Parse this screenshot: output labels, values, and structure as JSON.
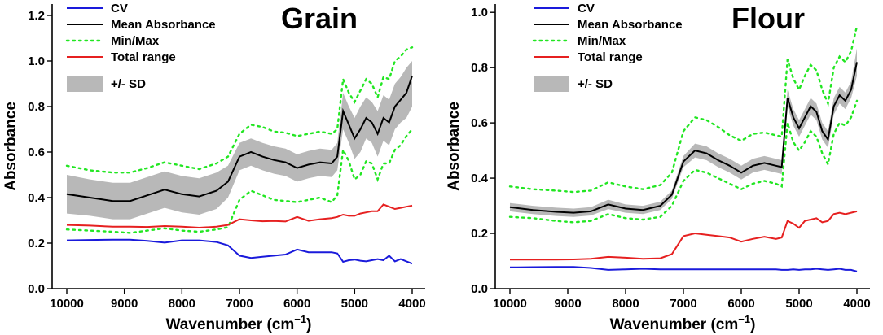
{
  "colors": {
    "cv": "#1a1adb",
    "mean": "#000000",
    "minmax": "#22e622",
    "range": "#e62020",
    "sd": "#b8b8b8"
  },
  "chart_data": [
    {
      "type": "line",
      "title": "Grain",
      "xlabel": "Wavenumber (cm",
      "xlabel_sup": "−1",
      "xlabel_close": ")",
      "ylabel": "Absorbance",
      "xlim": [
        10000,
        4000
      ],
      "ylim": [
        0,
        1.25
      ],
      "xticks": [
        10000,
        9000,
        8000,
        7000,
        6000,
        5000,
        4000
      ],
      "xtick_labels": [
        "10000",
        "9000",
        "8000",
        "7000",
        "6000",
        "5000",
        "4000"
      ],
      "yticks": [
        0.0,
        0.2,
        0.4,
        0.6,
        0.8,
        1.0,
        1.2
      ],
      "ytick_labels": [
        "0.0",
        "0.2",
        "0.4",
        "0.6",
        "0.8",
        "1.0",
        "1.2"
      ],
      "legend": [
        "CV",
        "Mean Absorbance",
        "Min/Max",
        "Total range",
        "+/- SD"
      ],
      "x": [
        10000,
        9600,
        9200,
        8900,
        8600,
        8300,
        8000,
        7700,
        7400,
        7200,
        7000,
        6800,
        6600,
        6400,
        6200,
        6000,
        5800,
        5600,
        5400,
        5300,
        5200,
        5100,
        5000,
        4900,
        4800,
        4700,
        4600,
        4500,
        4400,
        4300,
        4200,
        4100,
        4000
      ],
      "series": [
        {
          "name": "Mean Absorbance",
          "values": [
            0.415,
            0.4,
            0.385,
            0.385,
            0.41,
            0.435,
            0.415,
            0.405,
            0.43,
            0.47,
            0.58,
            0.6,
            0.58,
            0.565,
            0.555,
            0.53,
            0.545,
            0.555,
            0.55,
            0.58,
            0.78,
            0.72,
            0.66,
            0.7,
            0.75,
            0.73,
            0.68,
            0.75,
            0.73,
            0.8,
            0.83,
            0.86,
            0.935
          ]
        },
        {
          "name": "SD upper",
          "values": [
            0.5,
            0.48,
            0.465,
            0.465,
            0.49,
            0.515,
            0.495,
            0.485,
            0.51,
            0.54,
            0.64,
            0.66,
            0.64,
            0.625,
            0.615,
            0.59,
            0.605,
            0.615,
            0.61,
            0.64,
            0.86,
            0.8,
            0.75,
            0.8,
            0.84,
            0.82,
            0.78,
            0.85,
            0.83,
            0.9,
            0.93,
            0.97,
            1.0
          ]
        },
        {
          "name": "SD lower",
          "values": [
            0.33,
            0.32,
            0.305,
            0.305,
            0.33,
            0.355,
            0.335,
            0.325,
            0.35,
            0.4,
            0.52,
            0.54,
            0.52,
            0.505,
            0.495,
            0.47,
            0.485,
            0.495,
            0.49,
            0.52,
            0.7,
            0.64,
            0.57,
            0.6,
            0.66,
            0.64,
            0.58,
            0.65,
            0.63,
            0.7,
            0.73,
            0.75,
            0.8
          ]
        },
        {
          "name": "Max",
          "values": [
            0.54,
            0.52,
            0.51,
            0.51,
            0.53,
            0.555,
            0.54,
            0.525,
            0.55,
            0.58,
            0.68,
            0.72,
            0.71,
            0.69,
            0.685,
            0.67,
            0.68,
            0.69,
            0.68,
            0.7,
            0.92,
            0.86,
            0.82,
            0.87,
            0.92,
            0.9,
            0.84,
            0.93,
            0.92,
            1.0,
            1.02,
            1.05,
            1.06
          ]
        },
        {
          "name": "Min",
          "values": [
            0.26,
            0.255,
            0.25,
            0.245,
            0.255,
            0.265,
            0.255,
            0.25,
            0.26,
            0.27,
            0.39,
            0.43,
            0.41,
            0.39,
            0.385,
            0.38,
            0.39,
            0.4,
            0.38,
            0.41,
            0.61,
            0.56,
            0.48,
            0.5,
            0.56,
            0.55,
            0.48,
            0.55,
            0.55,
            0.61,
            0.63,
            0.67,
            0.7
          ]
        },
        {
          "name": "Total range",
          "values": [
            0.28,
            0.277,
            0.272,
            0.272,
            0.271,
            0.275,
            0.272,
            0.268,
            0.272,
            0.28,
            0.305,
            0.3,
            0.296,
            0.297,
            0.295,
            0.315,
            0.298,
            0.305,
            0.31,
            0.315,
            0.325,
            0.32,
            0.32,
            0.33,
            0.335,
            0.34,
            0.34,
            0.37,
            0.36,
            0.35,
            0.355,
            0.36,
            0.365
          ]
        },
        {
          "name": "CV",
          "values": [
            0.212,
            0.214,
            0.215,
            0.215,
            0.21,
            0.202,
            0.212,
            0.212,
            0.205,
            0.19,
            0.145,
            0.135,
            0.14,
            0.145,
            0.15,
            0.172,
            0.16,
            0.16,
            0.16,
            0.155,
            0.118,
            0.125,
            0.128,
            0.123,
            0.12,
            0.125,
            0.13,
            0.125,
            0.145,
            0.12,
            0.13,
            0.12,
            0.11
          ]
        }
      ]
    },
    {
      "type": "line",
      "title": "Flour",
      "xlabel": "Wavenumber (cm",
      "xlabel_sup": "−1",
      "xlabel_close": ")",
      "ylabel": "Absorbance",
      "xlim": [
        10000,
        4000
      ],
      "ylim": [
        0,
        1.03
      ],
      "xticks": [
        10000,
        9000,
        8000,
        7000,
        6000,
        5000,
        4000
      ],
      "xtick_labels": [
        "10000",
        "9000",
        "8000",
        "7000",
        "6000",
        "5000",
        "4000"
      ],
      "yticks": [
        0.0,
        0.2,
        0.4,
        0.6,
        0.8,
        1.0
      ],
      "ytick_labels": [
        "0.0",
        "0.2",
        "0.4",
        "0.6",
        "0.8",
        "1.0"
      ],
      "legend": [
        "CV",
        "Mean Absorbance",
        "Min/Max",
        "Total range",
        "+/- SD"
      ],
      "x": [
        10000,
        9600,
        9200,
        8900,
        8600,
        8300,
        8000,
        7700,
        7400,
        7200,
        7000,
        6800,
        6600,
        6400,
        6200,
        6000,
        5800,
        5600,
        5400,
        5300,
        5200,
        5100,
        5000,
        4900,
        4800,
        4700,
        4600,
        4500,
        4400,
        4300,
        4200,
        4100,
        4000
      ],
      "series": [
        {
          "name": "Mean Absorbance",
          "values": [
            0.295,
            0.285,
            0.278,
            0.275,
            0.28,
            0.305,
            0.29,
            0.285,
            0.3,
            0.34,
            0.46,
            0.5,
            0.49,
            0.465,
            0.445,
            0.42,
            0.445,
            0.455,
            0.445,
            0.44,
            0.69,
            0.62,
            0.58,
            0.62,
            0.66,
            0.64,
            0.57,
            0.54,
            0.66,
            0.7,
            0.68,
            0.72,
            0.82
          ]
        },
        {
          "name": "SD upper",
          "values": [
            0.31,
            0.3,
            0.293,
            0.29,
            0.295,
            0.322,
            0.305,
            0.3,
            0.315,
            0.355,
            0.48,
            0.525,
            0.515,
            0.49,
            0.47,
            0.445,
            0.47,
            0.48,
            0.47,
            0.465,
            0.72,
            0.65,
            0.61,
            0.65,
            0.69,
            0.67,
            0.6,
            0.57,
            0.69,
            0.73,
            0.71,
            0.75,
            0.87
          ]
        },
        {
          "name": "SD lower",
          "values": [
            0.28,
            0.27,
            0.263,
            0.26,
            0.265,
            0.288,
            0.275,
            0.27,
            0.285,
            0.325,
            0.44,
            0.475,
            0.465,
            0.44,
            0.42,
            0.395,
            0.42,
            0.43,
            0.42,
            0.415,
            0.66,
            0.59,
            0.55,
            0.59,
            0.63,
            0.61,
            0.54,
            0.51,
            0.63,
            0.67,
            0.65,
            0.69,
            0.77
          ]
        },
        {
          "name": "Max",
          "values": [
            0.37,
            0.36,
            0.355,
            0.35,
            0.355,
            0.385,
            0.37,
            0.36,
            0.375,
            0.42,
            0.57,
            0.62,
            0.61,
            0.585,
            0.555,
            0.535,
            0.56,
            0.565,
            0.555,
            0.55,
            0.83,
            0.76,
            0.72,
            0.77,
            0.81,
            0.79,
            0.72,
            0.67,
            0.8,
            0.84,
            0.82,
            0.86,
            0.95
          ]
        },
        {
          "name": "Min",
          "values": [
            0.26,
            0.255,
            0.245,
            0.24,
            0.245,
            0.27,
            0.255,
            0.25,
            0.26,
            0.3,
            0.39,
            0.43,
            0.42,
            0.4,
            0.38,
            0.36,
            0.38,
            0.39,
            0.38,
            0.37,
            0.6,
            0.53,
            0.5,
            0.53,
            0.57,
            0.55,
            0.49,
            0.45,
            0.56,
            0.6,
            0.59,
            0.62,
            0.68
          ]
        },
        {
          "name": "Total range",
          "values": [
            0.105,
            0.105,
            0.105,
            0.106,
            0.108,
            0.115,
            0.112,
            0.108,
            0.11,
            0.125,
            0.19,
            0.2,
            0.195,
            0.19,
            0.185,
            0.17,
            0.18,
            0.188,
            0.18,
            0.185,
            0.245,
            0.235,
            0.22,
            0.245,
            0.25,
            0.255,
            0.24,
            0.245,
            0.27,
            0.275,
            0.27,
            0.275,
            0.28
          ]
        },
        {
          "name": "CV",
          "values": [
            0.077,
            0.078,
            0.079,
            0.079,
            0.075,
            0.068,
            0.07,
            0.072,
            0.07,
            0.07,
            0.07,
            0.07,
            0.07,
            0.07,
            0.07,
            0.07,
            0.07,
            0.07,
            0.07,
            0.068,
            0.068,
            0.07,
            0.068,
            0.07,
            0.07,
            0.072,
            0.07,
            0.068,
            0.07,
            0.072,
            0.068,
            0.068,
            0.062
          ]
        }
      ]
    }
  ]
}
